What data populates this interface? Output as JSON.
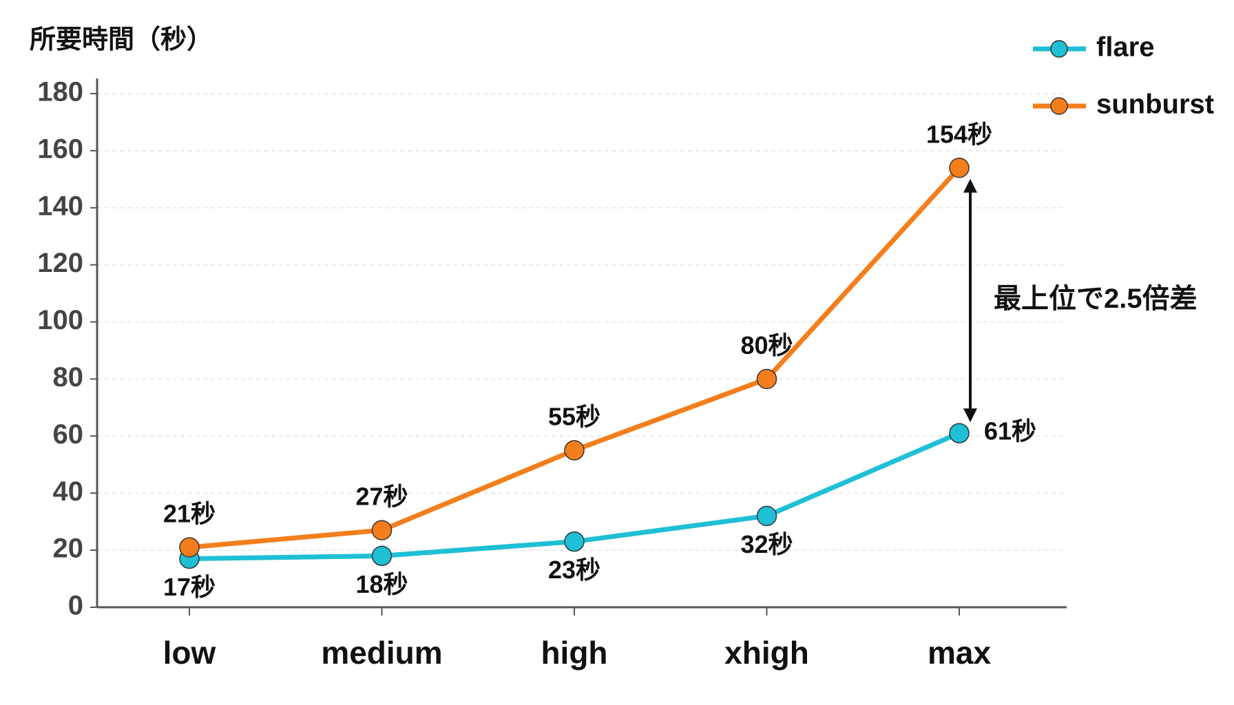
{
  "chart_data": {
    "type": "line",
    "y_axis_label": "所要時間（秒）",
    "categories": [
      "low",
      "medium",
      "high",
      "xhigh",
      "max"
    ],
    "series": [
      {
        "name": "flare",
        "color": "#1fbfd5",
        "values": [
          17,
          18,
          23,
          32,
          61
        ],
        "value_labels": [
          "17秒",
          "18秒",
          "23秒",
          "32秒",
          "61秒"
        ]
      },
      {
        "name": "sunburst",
        "color": "#f47e1b",
        "values": [
          21,
          27,
          55,
          80,
          154
        ],
        "value_labels": [
          "21秒",
          "27秒",
          "55秒",
          "80秒",
          "154秒"
        ]
      }
    ],
    "ylim": [
      0,
      180
    ],
    "yticks": [
      0,
      20,
      40,
      60,
      80,
      100,
      120,
      140,
      160,
      180
    ],
    "grid": true,
    "legend": "top-right",
    "annotation": "最上位で2.5倍差"
  }
}
